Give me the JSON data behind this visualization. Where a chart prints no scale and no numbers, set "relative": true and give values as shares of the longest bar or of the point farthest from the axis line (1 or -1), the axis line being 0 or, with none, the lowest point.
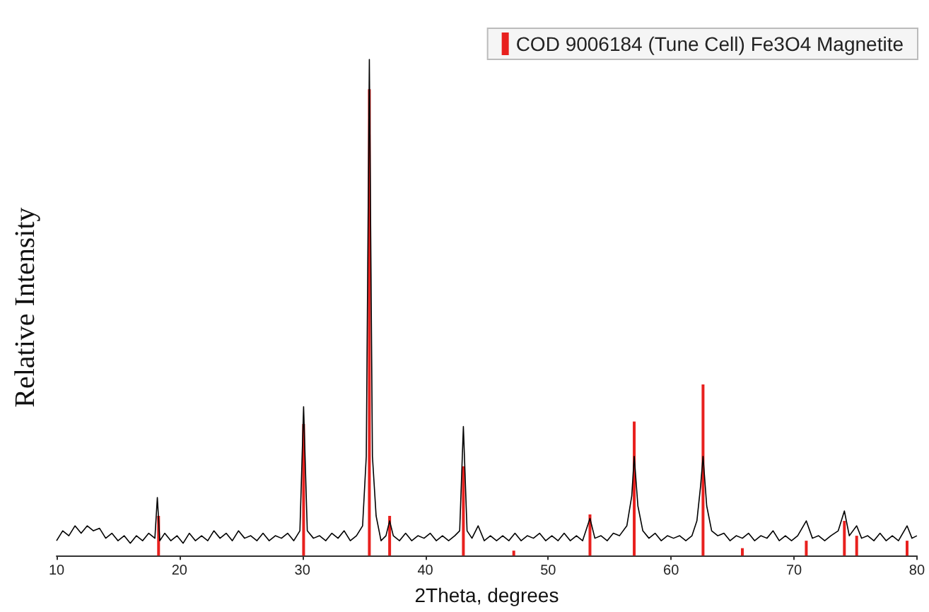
{
  "chart_data": {
    "type": "line",
    "relative": true,
    "xlabel": "2Theta, degrees",
    "ylabel": "Relative Intensity",
    "xlim": [
      10,
      80
    ],
    "xticks": [
      10,
      20,
      30,
      40,
      50,
      60,
      70,
      80
    ],
    "grid": false,
    "legend": "top right",
    "marker": "none",
    "series": [
      {
        "color": "#000000",
        "x": [
          10,
          10.5,
          11,
          11.5,
          12,
          12.5,
          13,
          13.5,
          14,
          14.5,
          15,
          15.5,
          16,
          16.5,
          17,
          17.5,
          18,
          18.2,
          18.4,
          18.8,
          19.3,
          19.8,
          20.3,
          20.8,
          21.3,
          21.8,
          22.3,
          22.8,
          23.3,
          23.8,
          24.3,
          24.8,
          25.3,
          25.8,
          26.3,
          26.8,
          27.3,
          27.8,
          28.3,
          28.8,
          29.3,
          29.8,
          30.1,
          30.4,
          30.9,
          31.4,
          31.9,
          32.4,
          32.9,
          33.4,
          33.9,
          34.4,
          34.9,
          35.2,
          35.45,
          35.7,
          36,
          36.4,
          36.8,
          37.1,
          37.4,
          37.9,
          38.4,
          38.9,
          39.4,
          39.9,
          40.4,
          40.9,
          41.4,
          41.9,
          42.4,
          42.8,
          43.1,
          43.4,
          43.8,
          44.3,
          44.8,
          45.3,
          45.8,
          46.3,
          46.8,
          47.3,
          47.8,
          48.3,
          48.8,
          49.3,
          49.8,
          50.3,
          50.8,
          51.3,
          51.8,
          52.3,
          52.8,
          53.4,
          53.8,
          54.3,
          54.8,
          55.3,
          55.8,
          56.4,
          56.8,
          57.0,
          57.3,
          57.7,
          58.2,
          58.7,
          59.2,
          59.7,
          60.2,
          60.7,
          61.2,
          61.7,
          62.1,
          62.4,
          62.6,
          62.9,
          63.3,
          63.8,
          64.3,
          64.8,
          65.3,
          65.8,
          66.3,
          66.8,
          67.3,
          67.8,
          68.3,
          68.8,
          69.3,
          69.8,
          70.3,
          71.0,
          71.5,
          72,
          72.5,
          73,
          73.6,
          74.1,
          74.5,
          75.1,
          75.5,
          76,
          76.5,
          77,
          77.5,
          78,
          78.5,
          79.2,
          79.6,
          80
        ],
        "values": [
          0.03,
          0.05,
          0.04,
          0.06,
          0.045,
          0.06,
          0.05,
          0.055,
          0.035,
          0.045,
          0.03,
          0.04,
          0.025,
          0.04,
          0.03,
          0.045,
          0.035,
          0.117,
          0.03,
          0.045,
          0.03,
          0.04,
          0.025,
          0.045,
          0.03,
          0.04,
          0.03,
          0.05,
          0.035,
          0.045,
          0.03,
          0.05,
          0.035,
          0.04,
          0.03,
          0.045,
          0.03,
          0.04,
          0.035,
          0.045,
          0.03,
          0.05,
          0.3,
          0.05,
          0.035,
          0.04,
          0.03,
          0.045,
          0.035,
          0.05,
          0.03,
          0.04,
          0.06,
          0.2,
          1.0,
          0.2,
          0.08,
          0.03,
          0.04,
          0.07,
          0.04,
          0.03,
          0.045,
          0.03,
          0.04,
          0.035,
          0.045,
          0.03,
          0.04,
          0.03,
          0.04,
          0.05,
          0.26,
          0.05,
          0.035,
          0.06,
          0.03,
          0.04,
          0.03,
          0.04,
          0.03,
          0.045,
          0.03,
          0.04,
          0.035,
          0.045,
          0.03,
          0.04,
          0.03,
          0.045,
          0.03,
          0.04,
          0.03,
          0.075,
          0.035,
          0.04,
          0.03,
          0.045,
          0.04,
          0.06,
          0.12,
          0.2,
          0.1,
          0.05,
          0.035,
          0.045,
          0.03,
          0.04,
          0.035,
          0.04,
          0.03,
          0.04,
          0.07,
          0.14,
          0.2,
          0.1,
          0.05,
          0.04,
          0.045,
          0.03,
          0.04,
          0.035,
          0.045,
          0.03,
          0.04,
          0.035,
          0.05,
          0.03,
          0.04,
          0.03,
          0.04,
          0.07,
          0.035,
          0.04,
          0.03,
          0.04,
          0.05,
          0.09,
          0.04,
          0.06,
          0.035,
          0.04,
          0.03,
          0.045,
          0.03,
          0.04,
          0.03,
          0.06,
          0.035,
          0.04
        ]
      },
      {
        "type": "bar",
        "name": "COD 9006184 (Tune Cell) Fe3O4 Magnetite",
        "color": "#e8201e",
        "x": [
          18.3,
          30.1,
          35.45,
          37.1,
          43.1,
          47.2,
          53.4,
          57.0,
          62.6,
          65.8,
          71.0,
          74.1,
          75.1,
          79.2
        ],
        "values": [
          0.08,
          0.265,
          0.94,
          0.08,
          0.18,
          0.01,
          0.083,
          0.27,
          0.345,
          0.015,
          0.03,
          0.07,
          0.04,
          0.03
        ]
      }
    ]
  }
}
